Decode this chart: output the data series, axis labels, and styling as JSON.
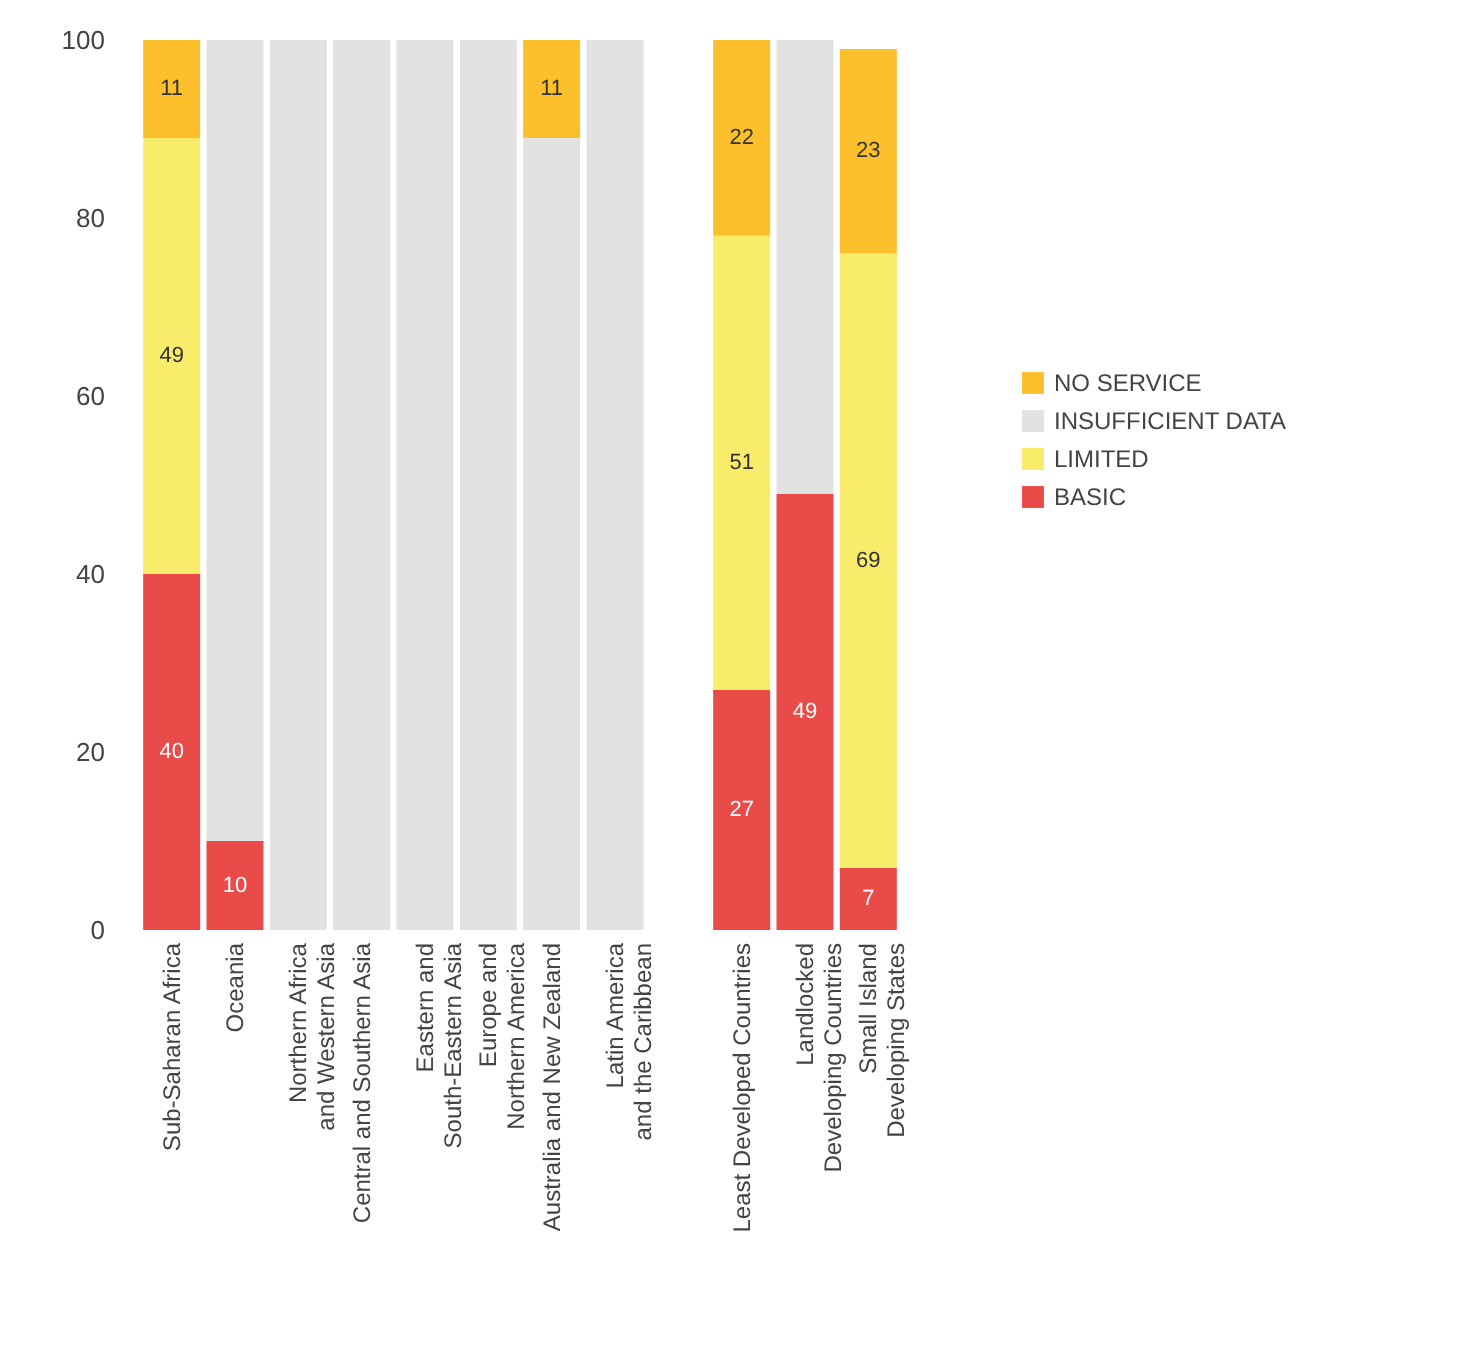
{
  "chart_data": {
    "type": "bar",
    "stacked": true,
    "categories": [
      "Sub-Saharan Africa",
      "Oceania",
      "Northern Africa\nand Western Asia",
      "Central and Southern Asia",
      "Eastern and\nSouth-Eastern Asia",
      "Europe and\nNorthern America",
      "Australia and New Zealand",
      "Latin America\nand the Caribbean",
      null,
      "Least Developed Countries",
      "Landlocked\nDeveloping Countries",
      "Small Island\nDeveloping States"
    ],
    "series": [
      {
        "name": "BASIC",
        "color": "#e84b48",
        "values": [
          40,
          10,
          null,
          null,
          null,
          null,
          null,
          null,
          null,
          27,
          49,
          7
        ],
        "value_labels": [
          "40",
          "10",
          null,
          null,
          null,
          null,
          null,
          null,
          null,
          "27",
          "49",
          "7"
        ]
      },
      {
        "name": "LIMITED",
        "color": "#f9ec6a",
        "values": [
          49,
          null,
          null,
          null,
          null,
          null,
          null,
          null,
          null,
          51,
          null,
          69
        ],
        "value_labels": [
          "49",
          null,
          null,
          null,
          null,
          null,
          null,
          null,
          null,
          "51",
          null,
          "69"
        ]
      },
      {
        "name": "INSUFFICIENT DATA",
        "color": "#e2e2e2",
        "values": [
          null,
          90,
          100,
          100,
          100,
          100,
          89,
          100,
          null,
          null,
          51,
          null
        ]
      },
      {
        "name": "NO SERVICE",
        "color": "#fcc02c",
        "values": [
          11,
          null,
          null,
          null,
          null,
          null,
          11,
          null,
          null,
          22,
          null,
          23
        ],
        "value_labels": [
          "11",
          null,
          null,
          null,
          null,
          null,
          "11",
          null,
          null,
          "22",
          null,
          "23"
        ]
      }
    ],
    "ylim": [
      0,
      100
    ],
    "yticks": [
      0,
      20,
      40,
      60,
      80,
      100
    ],
    "legend": "right"
  }
}
